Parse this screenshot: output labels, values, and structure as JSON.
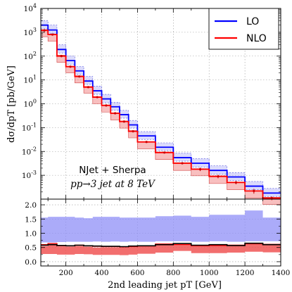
{
  "chart_data": [
    {
      "type": "line",
      "step": true,
      "title": "",
      "xlabel": "",
      "ylabel": "dσ/dpT [pb/GeV]",
      "ylog": true,
      "ylim": [
        0.0001,
        10000
      ],
      "xlim": [
        60,
        1400
      ],
      "grid": true,
      "legend_position": "top-right",
      "bin_edges": [
        60,
        100,
        150,
        200,
        250,
        300,
        350,
        400,
        450,
        500,
        550,
        600,
        700,
        800,
        900,
        1000,
        1100,
        1200,
        1300,
        1400
      ],
      "series": [
        {
          "name": "LO",
          "color": "#0000ff",
          "values": [
            2000,
            1250,
            190,
            65,
            24,
            9,
            3.5,
            1.6,
            0.75,
            0.35,
            0.13,
            0.045,
            0.015,
            0.0055,
            0.0032,
            0.0016,
            0.00085,
            0.00035,
            0.00018
          ],
          "band_low": [
            1400,
            880,
            135,
            45,
            17,
            6.5,
            2.5,
            1.1,
            0.53,
            0.25,
            0.095,
            0.032,
            0.011,
            0.0039,
            0.0022,
            0.0011,
            0.0006,
            0.00025,
            0.00013
          ],
          "band_high": [
            3100,
            2000,
            300,
            100,
            37,
            14,
            5.5,
            2.5,
            1.15,
            0.53,
            0.2,
            0.068,
            0.023,
            0.0085,
            0.005,
            0.0025,
            0.0013,
            0.00055,
            0.00028
          ]
        },
        {
          "name": "NLO",
          "color": "#ff0000",
          "values": [
            1200,
            800,
            100,
            36,
            14,
            5,
            1.9,
            0.85,
            0.4,
            0.18,
            0.07,
            0.025,
            0.009,
            0.0032,
            0.0018,
            0.0009,
            0.0005,
            0.00022,
            0.00011
          ],
          "errors": [
            0,
            0,
            0,
            0,
            0,
            0,
            0,
            0,
            0,
            0,
            0,
            0,
            0,
            0,
            0.0003,
            0.00015,
            8e-05,
            5e-05,
            2e-05
          ],
          "band_low": [
            650,
            420,
            55,
            20,
            7.5,
            2.8,
            1.0,
            0.45,
            0.21,
            0.095,
            0.037,
            0.013,
            0.0046,
            0.0016,
            0.00095,
            0.00045,
            0.00025,
            0.00011,
            6e-05
          ],
          "band_high": [
            1300,
            850,
            110,
            38,
            15,
            5.3,
            2.0,
            0.9,
            0.42,
            0.19,
            0.075,
            0.026,
            0.0095,
            0.0034,
            0.0019,
            0.00095,
            0.00052,
            0.00023,
            0.00012
          ]
        }
      ],
      "yticks": [
        "10^{-3}",
        "10^{-2}",
        "10^{-1}",
        "10^{0}",
        "10^{1}",
        "10^{2}",
        "10^{3}",
        "10^{4}"
      ],
      "annotations": [
        "NJet + Sherpa",
        "pp→3 jet at 8 TeV"
      ]
    },
    {
      "type": "area",
      "step": true,
      "title": "",
      "xlabel": "2nd leading jet pT [GeV]",
      "ylabel": "",
      "ylim": [
        -0.15,
        2.2
      ],
      "xlim": [
        60,
        1400
      ],
      "grid": true,
      "xticks": [
        200,
        400,
        600,
        800,
        1000,
        1200,
        1400
      ],
      "yticks": [
        0.0,
        0.5,
        1.0,
        1.5,
        2.0
      ],
      "bin_edges": [
        60,
        100,
        150,
        200,
        250,
        300,
        350,
        400,
        450,
        500,
        550,
        600,
        700,
        800,
        900,
        1000,
        1100,
        1200,
        1300,
        1400
      ],
      "series": [
        {
          "name": "",
          "color": "#8f8ff7",
          "band_low": [
            0.68,
            0.68,
            0.69,
            0.7,
            0.7,
            0.7,
            0.71,
            0.7,
            0.71,
            0.7,
            0.71,
            0.7,
            0.72,
            0.72,
            0.7,
            0.72,
            0.7,
            0.72,
            0.72
          ],
          "band_high": [
            1.55,
            1.58,
            1.58,
            1.58,
            1.55,
            1.53,
            1.58,
            1.58,
            1.58,
            1.55,
            1.55,
            1.55,
            1.6,
            1.62,
            1.58,
            1.65,
            1.65,
            1.8,
            1.55
          ]
        },
        {
          "name": "",
          "color": "#ff0000",
          "values": [
            0.6,
            0.64,
            0.55,
            0.55,
            0.58,
            0.56,
            0.54,
            0.53,
            0.53,
            0.52,
            0.53,
            0.55,
            0.62,
            0.6,
            0.56,
            0.57,
            0.58,
            0.63,
            0.61
          ],
          "band_low": [
            0.27,
            0.27,
            0.25,
            0.25,
            0.27,
            0.26,
            0.24,
            0.24,
            0.24,
            0.23,
            0.25,
            0.28,
            0.32,
            0.38,
            0.3,
            0.3,
            0.32,
            0.35,
            0.33
          ],
          "band_high": [
            0.55,
            0.58,
            0.52,
            0.52,
            0.55,
            0.53,
            0.5,
            0.5,
            0.5,
            0.5,
            0.51,
            0.53,
            0.6,
            0.58,
            0.55,
            0.56,
            0.57,
            0.62,
            0.6
          ]
        },
        {
          "name": "",
          "color": "#000000",
          "values": [
            0.58,
            0.6,
            0.57,
            0.56,
            0.58,
            0.56,
            0.55,
            0.54,
            0.54,
            0.53,
            0.55,
            0.56,
            0.6,
            0.64,
            0.58,
            0.6,
            0.57,
            0.65,
            0.6
          ]
        }
      ]
    }
  ]
}
